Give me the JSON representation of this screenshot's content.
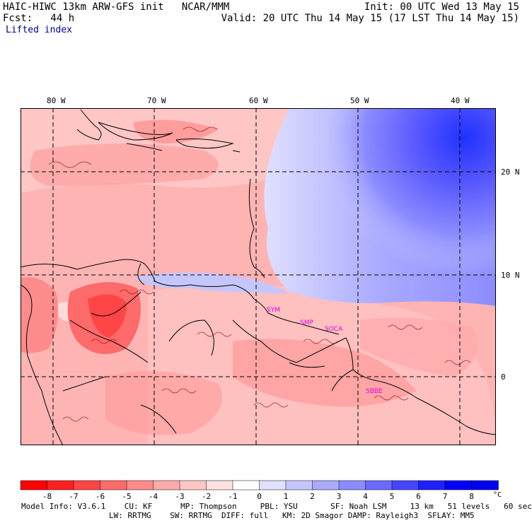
{
  "header": {
    "title": "HAIC-HIWC 13km ARW-GFS init   NCAR/MMM",
    "fcst": "Fcst:   44 h",
    "init": "Init: 00 UTC Wed 13 May 15",
    "valid": "Valid: 20 UTC Thu 14 May 15 (17 LST Thu 14 May 15)",
    "variable": "Lifted index"
  },
  "map": {
    "lon_labels": [
      "80 W",
      "70 W",
      "60 W",
      "50 W",
      "40 W"
    ],
    "lat_labels": [
      "20 N",
      "10 N",
      "0"
    ],
    "stations": [
      "SYM",
      "SMP",
      "SOCA",
      "SBBE"
    ],
    "colors": {
      "station": "#e000e0",
      "coast": "#000000",
      "grid": "#000000"
    }
  },
  "colorbar": {
    "labels": [
      "-8",
      "-7",
      "-6",
      "-5",
      "-4",
      "-3",
      "-2",
      "-1",
      "0",
      "1",
      "2",
      "3",
      "4",
      "5",
      "6",
      "7",
      "8"
    ],
    "unit": "°C",
    "colors": [
      "#ff0000",
      "#ff2020",
      "#ff4545",
      "#ff6a6a",
      "#ff8c8c",
      "#ffaaaa",
      "#ffc6c6",
      "#ffe0e0",
      "#ffffff",
      "#e0e0ff",
      "#c6c6ff",
      "#aaaaff",
      "#8c8cff",
      "#6a6aff",
      "#4545ff",
      "#2020ff",
      "#0000ff",
      "#0000ee"
    ]
  },
  "footer": {
    "line1": "Model Info: V3.6.1    CU: KF      MP: Thompson     PBL: YSU       SF: Noah LSM     13 km   51 levels   60 sec",
    "line2": "LW: RRTMG    SW: RRTMG  DIFF: full   KM: 2D Smagor DAMP: Rayleigh3  SFLAY: MM5"
  }
}
